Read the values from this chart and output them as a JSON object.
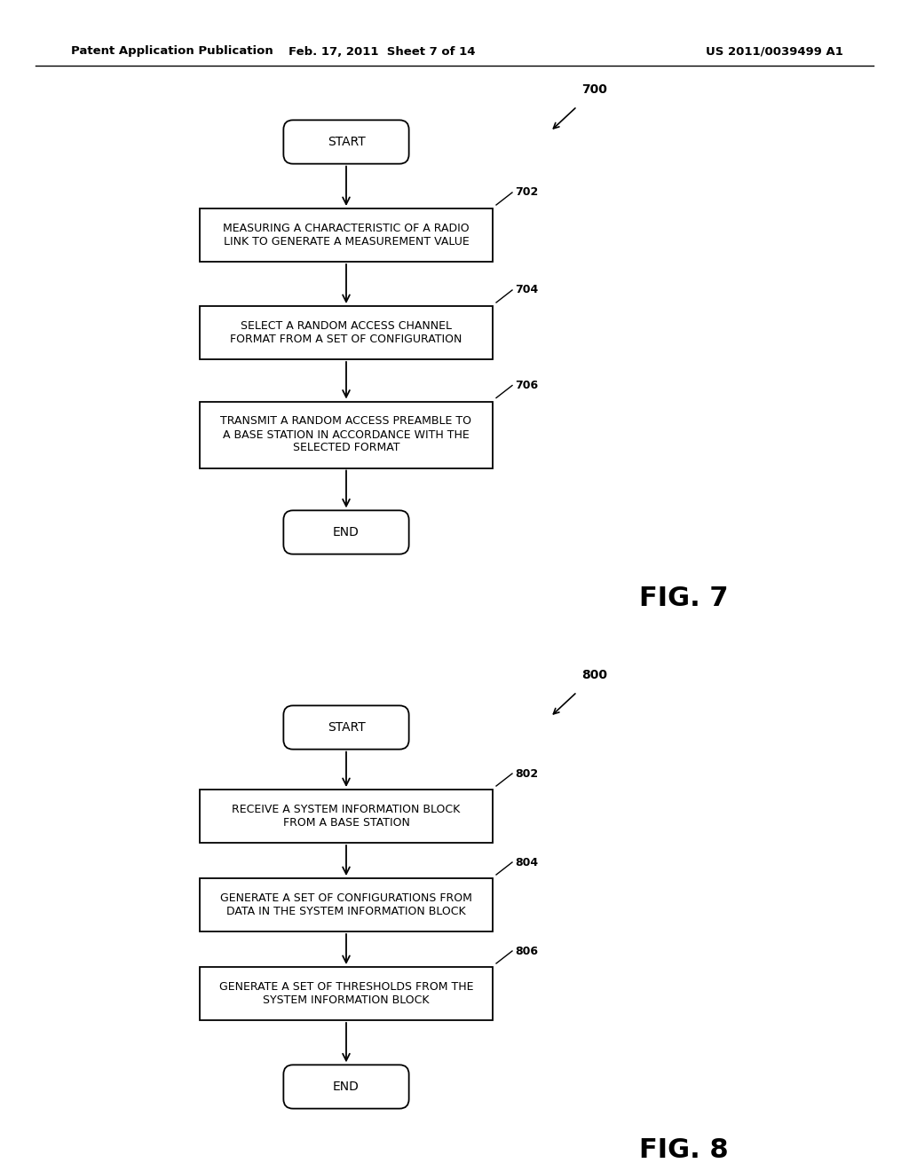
{
  "bg_color": "#ffffff",
  "text_color": "#000000",
  "header_left": "Patent Application Publication",
  "header_center": "Feb. 17, 2011  Sheet 7 of 14",
  "header_right": "US 2011/0039499 A1",
  "fig7_label": "FIG. 7",
  "fig8_label": "FIG. 8",
  "fig7_ref": "700",
  "fig8_ref": "800",
  "fig7_nodes": [
    {
      "id": "start7",
      "type": "rounded",
      "text": "START"
    },
    {
      "id": "box702",
      "type": "rect",
      "text": "MEASURING A CHARACTERISTIC OF A RADIO\nLINK TO GENERATE A MEASUREMENT VALUE",
      "ref": "702"
    },
    {
      "id": "box704",
      "type": "rect",
      "text": "SELECT A RANDOM ACCESS CHANNEL\nFORMAT FROM A SET OF CONFIGURATION",
      "ref": "704"
    },
    {
      "id": "box706",
      "type": "rect",
      "text": "TRANSMIT A RANDOM ACCESS PREAMBLE TO\nA BASE STATION IN ACCORDANCE WITH THE\nSELECTED FORMAT",
      "ref": "706"
    },
    {
      "id": "end7",
      "type": "rounded",
      "text": "END"
    }
  ],
  "fig8_nodes": [
    {
      "id": "start8",
      "type": "rounded",
      "text": "START"
    },
    {
      "id": "box802",
      "type": "rect",
      "text": "RECEIVE A SYSTEM INFORMATION BLOCK\nFROM A BASE STATION",
      "ref": "802"
    },
    {
      "id": "box804",
      "type": "rect",
      "text": "GENERATE A SET OF CONFIGURATIONS FROM\nDATA IN THE SYSTEM INFORMATION BLOCK",
      "ref": "804"
    },
    {
      "id": "box806",
      "type": "rect",
      "text": "GENERATE A SET OF THRESHOLDS FROM THE\nSYSTEM INFORMATION BLOCK",
      "ref": "806"
    },
    {
      "id": "end8",
      "type": "rounded",
      "text": "END"
    }
  ]
}
